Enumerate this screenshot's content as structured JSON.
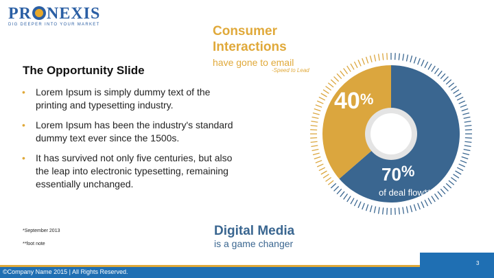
{
  "logo": {
    "word_left": "PR",
    "word_right": "NEXIS",
    "tagline": "DIG DEEPER INTO YOUR MARKET"
  },
  "slide": {
    "title": "The Opportunity Slide",
    "bullets": [
      "Lorem Ipsum is simply dummy text of the printing and typesetting industry.",
      "Lorem Ipsum has been the industry's standard dummy text ever since the 1500s.",
      "It has survived not only five centuries, but also the leap into electronic typesetting, remaining essentially unchanged."
    ],
    "footnotes": [
      "*September 2013",
      "**foot note"
    ]
  },
  "callouts": {
    "consumer_title": "Consumer Interactions",
    "consumer_sub": "have gone to email",
    "consumer_source": "-Speed to Lead",
    "digital_title": "Digital Media",
    "digital_sub": "is a game changer"
  },
  "chart_data": {
    "type": "pie",
    "categories": [
      "Consumer Interactions",
      "Digital Media"
    ],
    "values": [
      40,
      70
    ],
    "labels": [
      "40%",
      "70%"
    ],
    "colors": [
      "#dba63e",
      "#3a6690"
    ],
    "annotation": "of deal flow**"
  },
  "chart_text": {
    "pct40_num": "40",
    "pct70_num": "70",
    "pct_sign": "%",
    "deal": "of deal flow**"
  },
  "footer": {
    "copyright": "©Company Name 2015 | All Rights Reserved.",
    "page": "3"
  },
  "colors": {
    "accent": "#e0a93a",
    "brand_blue": "#1f6fb3",
    "chart_blue": "#3a6690"
  }
}
